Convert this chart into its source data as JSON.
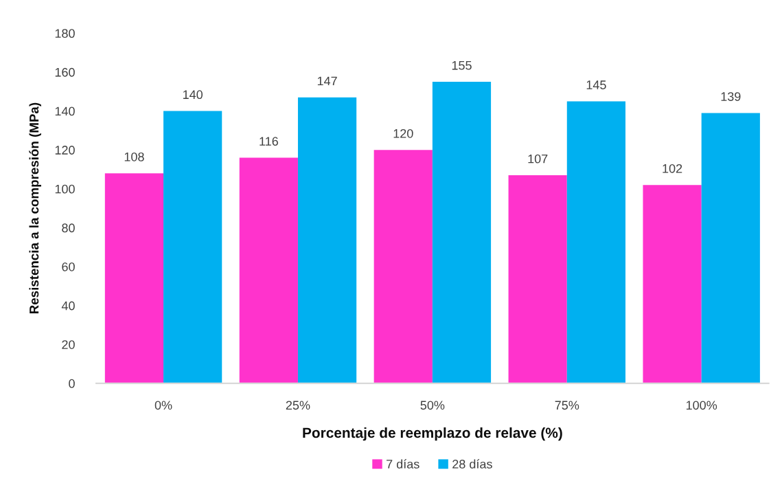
{
  "chart_data": {
    "type": "bar",
    "xlabel": "Porcentaje de reemplazo de relave (%)",
    "ylabel": "Resistencia a la compresión (MPa)",
    "categories": [
      "0%",
      "25%",
      "50%",
      "75%",
      "100%"
    ],
    "series": [
      {
        "name": "7 días",
        "color": "#ff33cc",
        "values": [
          108,
          116,
          120,
          107,
          102
        ]
      },
      {
        "name": "28 días",
        "color": "#00b0f0",
        "values": [
          140,
          147,
          155,
          145,
          139
        ]
      }
    ],
    "ylim": [
      0,
      180
    ],
    "yticks": [
      0,
      20,
      40,
      60,
      80,
      100,
      120,
      140,
      160,
      180
    ],
    "data_labels": true,
    "grid": false,
    "legend": "bottom"
  }
}
